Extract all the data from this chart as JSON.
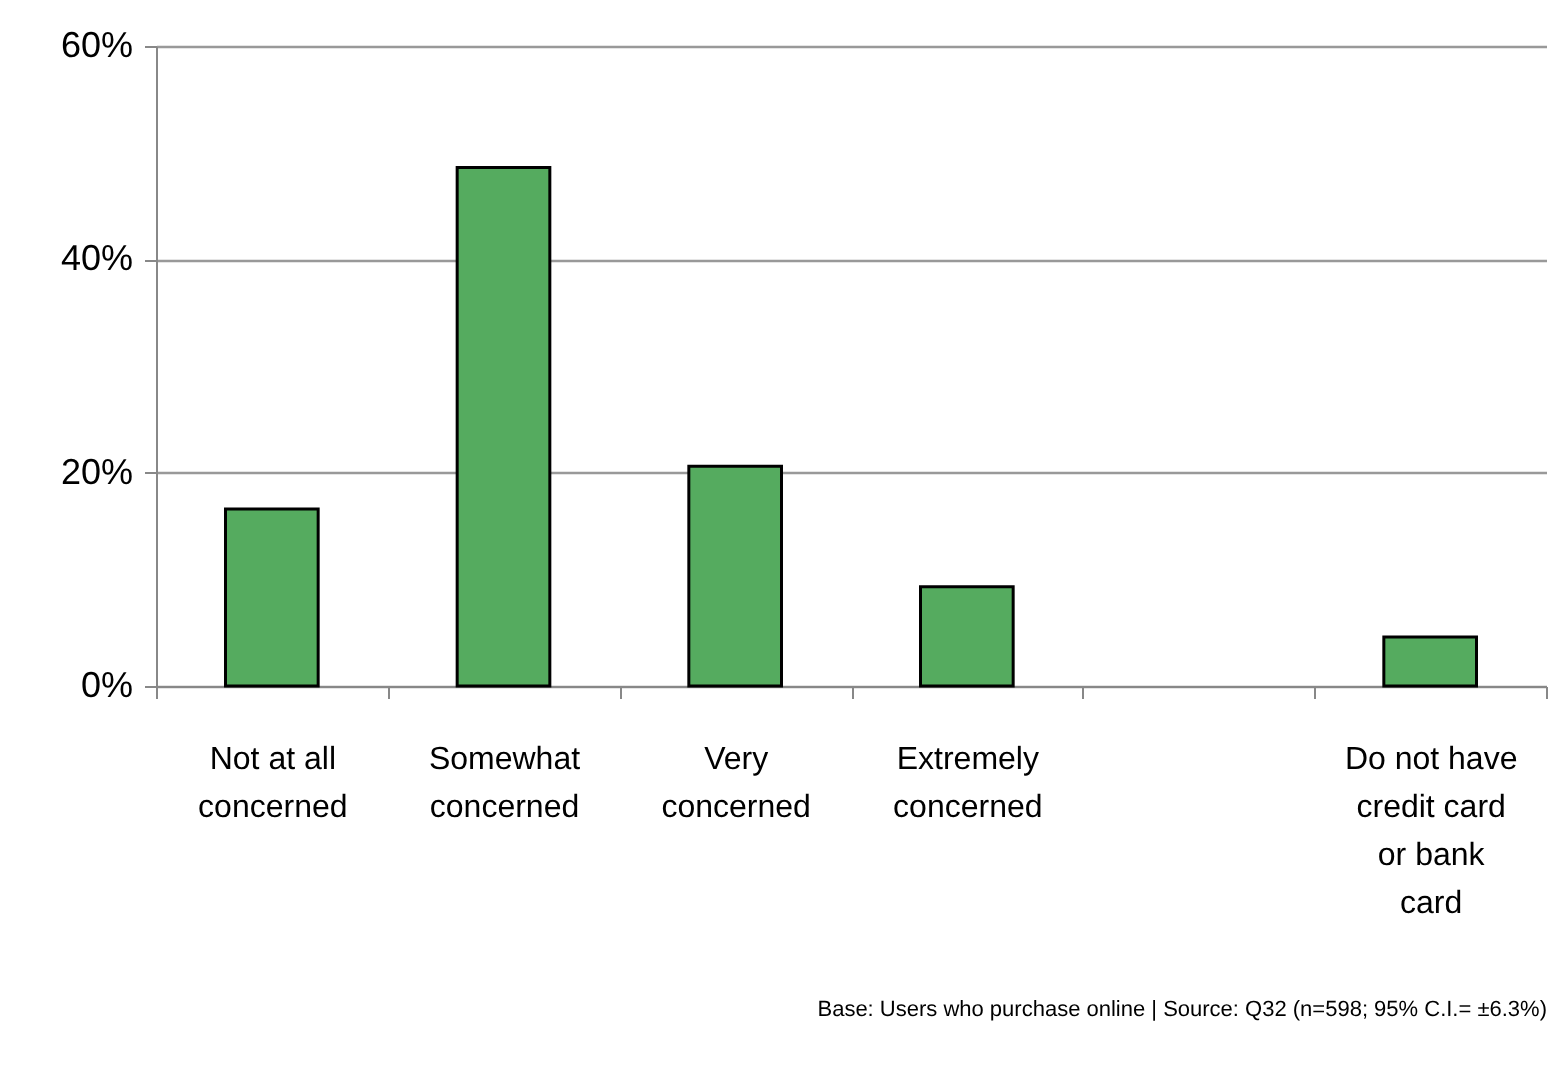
{
  "chart_data": {
    "type": "bar",
    "categories": [
      "Not at all concerned",
      "Somewhat concerned",
      "Very concerned",
      "Extremely concerned",
      null,
      "Do not have credit card or bank card"
    ],
    "values": [
      16.6,
      48.6,
      20.6,
      9.3,
      null,
      4.6
    ],
    "color": "#55ab5f",
    "ylim": [
      0,
      60
    ],
    "yticks": [
      {
        "value": 0,
        "label": "0%"
      },
      {
        "value": 20,
        "label": "20%"
      },
      {
        "value": 40,
        "label": "40%"
      },
      {
        "value": 60,
        "label": "60%"
      }
    ],
    "grid": "y",
    "annotations": [
      "Base: Users who purchase online | Source: Q32 (n=598; 95% C.I.= ±6.3%)"
    ]
  }
}
